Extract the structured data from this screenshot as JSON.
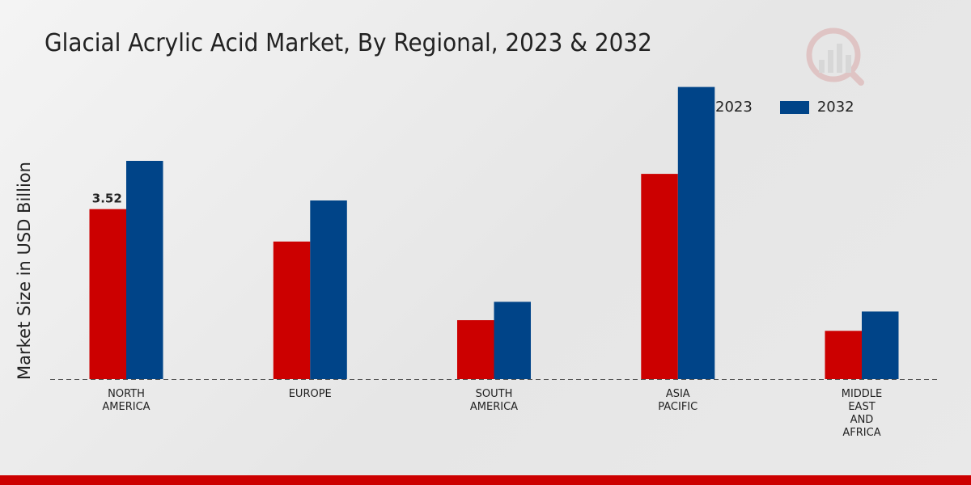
{
  "chart_data": {
    "type": "bar",
    "title": "Glacial Acrylic Acid Market, By Regional, 2023 & 2032",
    "xlabel": "",
    "ylabel": "Market Size in USD Billion",
    "categories": [
      "NORTH\nAMERICA",
      "EUROPE",
      "SOUTH\nAMERICA",
      "ASIA\nPACIFIC",
      "MIDDLE\nEAST\nAND\nAFRICA"
    ],
    "series": [
      {
        "name": "2023",
        "color": "#cc0000",
        "values": [
          3.52,
          2.85,
          1.22,
          4.25,
          1.0
        ]
      },
      {
        "name": "2032",
        "color": "#004488",
        "values": [
          4.52,
          3.7,
          1.6,
          6.05,
          1.4
        ]
      }
    ],
    "data_labels": [
      {
        "series": 0,
        "index": 0,
        "text": "3.52"
      }
    ],
    "ylim": [
      0,
      7.5
    ],
    "grid": false,
    "legend_position": "top-right"
  },
  "icons": {
    "watermark": "market-research-logo-icon"
  }
}
